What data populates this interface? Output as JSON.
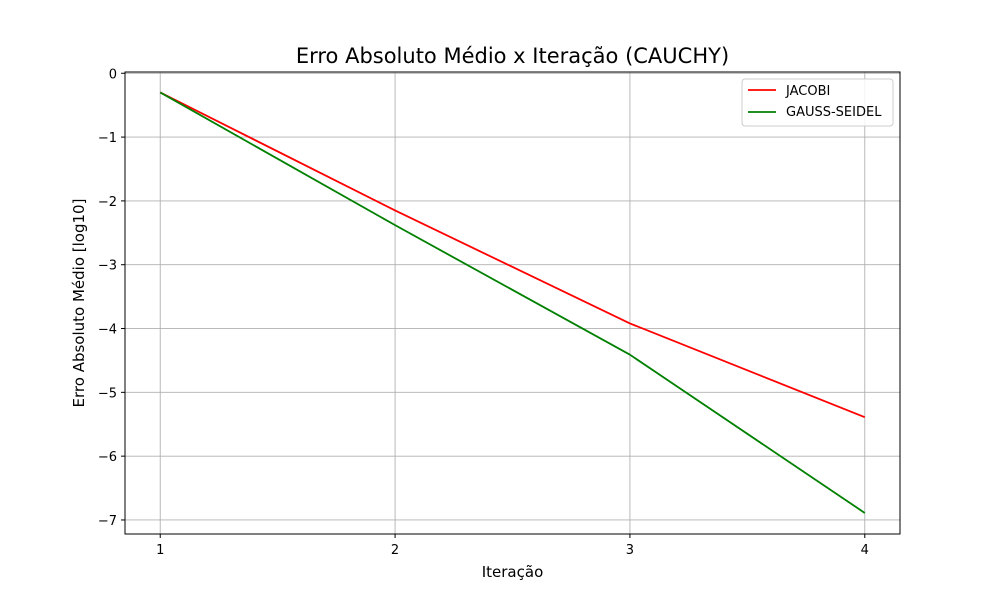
{
  "chart_data": {
    "type": "line",
    "title": "Erro Absoluto Médio x Iteração (CAUCHY)",
    "xlabel": "Iteração",
    "ylabel": "Erro Absoluto Médio [log10]",
    "x": [
      1,
      2,
      3,
      4
    ],
    "xticks": [
      "1",
      "2",
      "3",
      "4"
    ],
    "yticks": [
      "0",
      "−1",
      "−2",
      "−3",
      "−4",
      "−5",
      "−6",
      "−7"
    ],
    "xlim": [
      0.85,
      4.15
    ],
    "ylim": [
      -7.22,
      0.02
    ],
    "grid": true,
    "legend_position": "top-right",
    "series": [
      {
        "name": "JACOBI",
        "color": "#ff0000",
        "values": [
          -0.3,
          -2.15,
          -3.92,
          -5.39
        ]
      },
      {
        "name": "GAUSS-SEIDEL",
        "color": "#008000",
        "values": [
          -0.3,
          -2.38,
          -4.41,
          -6.89
        ]
      }
    ]
  }
}
